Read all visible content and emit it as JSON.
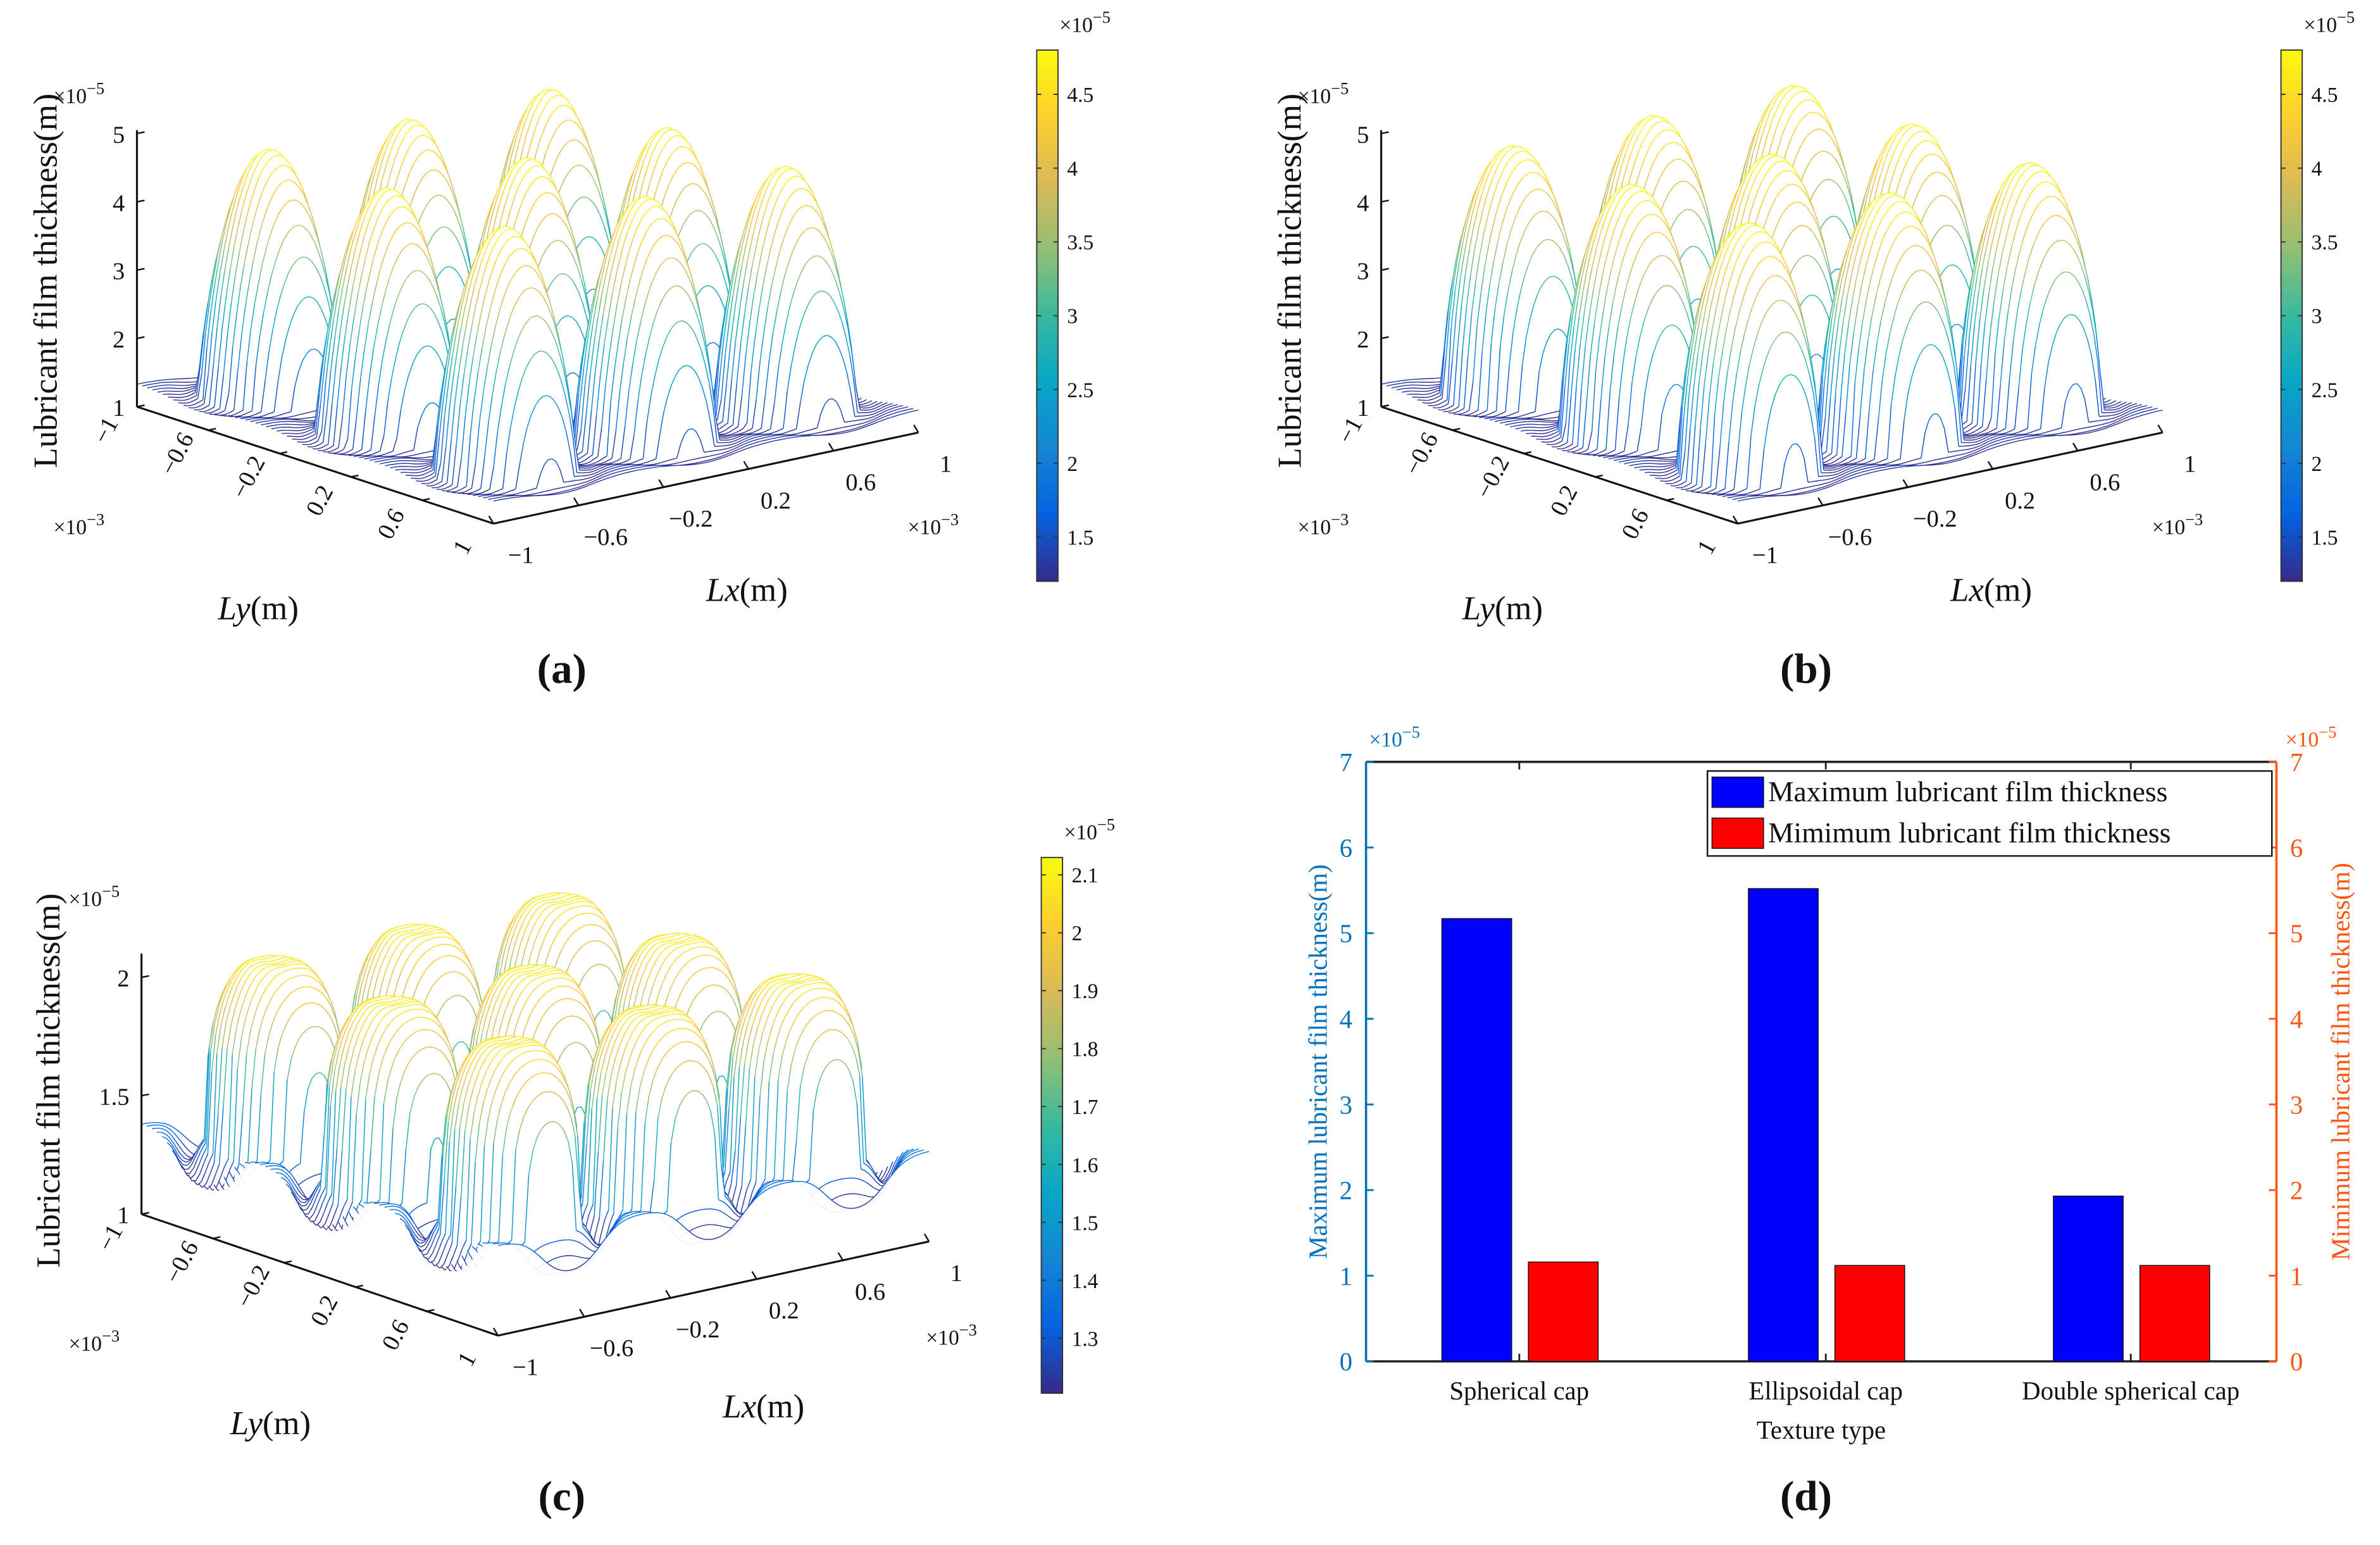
{
  "panels": [
    {
      "label": "(a)",
      "zlabel": "Lubricant film thickness(m)",
      "exp_base": "×10",
      "z_exp_power": "−5",
      "xy_exp_power": "−3",
      "xlabel_var": "Lx",
      "ylabel_var": "Ly",
      "unit": "(m)",
      "zlim": [
        1,
        5
      ],
      "zticks": [
        "1",
        "2",
        "3",
        "4",
        "5"
      ],
      "ticks_xy": [
        "−1",
        "−0.6",
        "−0.2",
        "0.2",
        "0.6",
        "1"
      ],
      "colorbar": {
        "range": [
          1.2,
          4.8
        ],
        "ticks": [
          "1.5",
          "2",
          "2.5",
          "3",
          "3.5",
          "4",
          "4.5"
        ],
        "exp_power": "−5"
      },
      "surface": {
        "texture": "spherical cap",
        "base": 1.3,
        "peak": 4.8,
        "centers": [
          -0.66,
          0,
          0.66
        ],
        "radius": 0.26,
        "shape": 0.75
      }
    },
    {
      "label": "(b)",
      "zlabel": "Lubricant film thickness(m)",
      "exp_base": "×10",
      "z_exp_power": "−5",
      "xy_exp_power": "−3",
      "xlabel_var": "Lx",
      "ylabel_var": "Ly",
      "unit": "(m)",
      "zlim": [
        1,
        5
      ],
      "zticks": [
        "1",
        "2",
        "3",
        "4",
        "5"
      ],
      "ticks_xy": [
        "−1",
        "−0.6",
        "−0.2",
        "0.2",
        "0.6",
        "1"
      ],
      "colorbar": {
        "range": [
          1.2,
          4.8
        ],
        "ticks": [
          "1.5",
          "2",
          "2.5",
          "3",
          "3.5",
          "4",
          "4.5"
        ],
        "exp_power": "−5"
      },
      "surface": {
        "texture": "ellipsoidal cap",
        "base": 1.3,
        "peak": 4.85,
        "centers": [
          -0.66,
          0,
          0.66
        ],
        "radius": 0.26,
        "shape": 0.6
      }
    },
    {
      "label": "(c)",
      "zlabel": "Lubricant film thickness(m)",
      "exp_base": "×10",
      "z_exp_power": "−5",
      "xy_exp_power": "−3",
      "xlabel_var": "Lx",
      "ylabel_var": "Ly",
      "unit": "(m)",
      "zlim": [
        1,
        2.1
      ],
      "zticks": [
        "1",
        "1.5",
        "2"
      ],
      "ticks_xy": [
        "−1",
        "−0.6",
        "−0.2",
        "0.2",
        "0.6",
        "1"
      ],
      "colorbar": {
        "range": [
          1.205,
          2.13
        ],
        "ticks": [
          "1.3",
          "1.4",
          "1.5",
          "1.6",
          "1.7",
          "1.8",
          "1.9",
          "2",
          "2.1"
        ],
        "exp_power": "−5"
      },
      "surface": {
        "texture": "double spherical cap",
        "base": 1.35,
        "peak": 2.12,
        "centers": [
          -0.66,
          0,
          0.66
        ],
        "radius": 0.25,
        "shape": 0.3
      }
    }
  ],
  "chart_data": {
    "type": "bar",
    "panel_label": "(d)",
    "categories": [
      "Spherical cap",
      "Ellipsoidal cap",
      "Double spherical cap"
    ],
    "xlabel": "Texture type",
    "ylabel_left": "Maximum lubricant film thickness(m)",
    "ylabel_right": "Mimimum lubricant film thickness(m)",
    "exp_base": "×10",
    "exp_power": "−5",
    "ylim": [
      0,
      7
    ],
    "yticks": [
      "0",
      "1",
      "2",
      "3",
      "4",
      "5",
      "6",
      "7"
    ],
    "series": [
      {
        "name": "Maximum lubricant film thickness",
        "color": "#0000ff",
        "values": [
          5.17,
          5.52,
          1.93
        ]
      },
      {
        "name": "Mimimum lubricant film thickness",
        "color": "#ff0000",
        "values": [
          1.16,
          1.12,
          1.12
        ]
      }
    ],
    "left_axis_color": "#0072bd",
    "right_axis_color": "#ff5511",
    "legend": "top-right"
  }
}
